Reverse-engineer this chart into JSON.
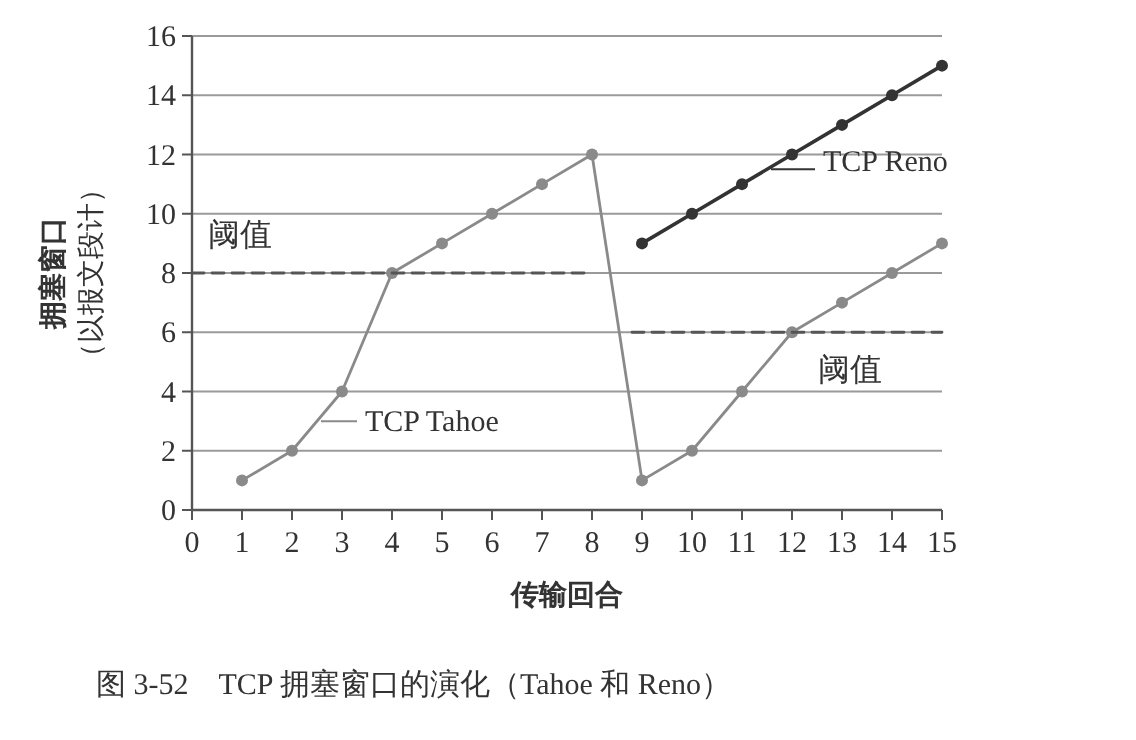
{
  "chart_data": {
    "type": "line",
    "title": "图 3-52　TCP 拥塞窗口的演化（Tahoe 和 Reno）",
    "xlabel": "传输回合",
    "ylabel": "拥塞窗口（以报文段计）",
    "legend": "right",
    "x": [
      1,
      2,
      3,
      4,
      5,
      6,
      7,
      8,
      9,
      10,
      11,
      12,
      13,
      14,
      15
    ],
    "series": [
      {
        "name": "TCP Tahoe",
        "color": "#8a8a8a",
        "values": [
          1,
          2,
          4,
          8,
          9,
          10,
          11,
          12,
          1,
          2,
          4,
          6,
          7,
          8,
          9
        ]
      },
      {
        "name": "TCP Reno",
        "color": "#333333",
        "x": [
          9,
          10,
          11,
          12,
          13,
          14,
          15
        ],
        "values": [
          9,
          10,
          11,
          12,
          13,
          14,
          15
        ]
      },
      {
        "color": "#555555",
        "x": [
          0,
          8
        ],
        "values": [
          8,
          8
        ],
        "line_style": "dashed",
        "marker": "none"
      },
      {
        "color": "#555555",
        "x": [
          8.8,
          15
        ],
        "values": [
          6,
          6
        ],
        "line_style": "dashed",
        "marker": "none"
      }
    ],
    "annotations": [
      "阈值",
      "阈值"
    ],
    "xlim": [
      0,
      15
    ],
    "ylim": [
      0,
      16
    ],
    "xticks": [
      0,
      1,
      2,
      3,
      4,
      5,
      6,
      7,
      8,
      9,
      10,
      11,
      12,
      13,
      14,
      15
    ],
    "yticks": [
      0,
      2,
      4,
      6,
      8,
      10,
      12,
      14,
      16
    ],
    "grid": "y",
    "marker": "circle",
    "line_style": "solid"
  }
}
